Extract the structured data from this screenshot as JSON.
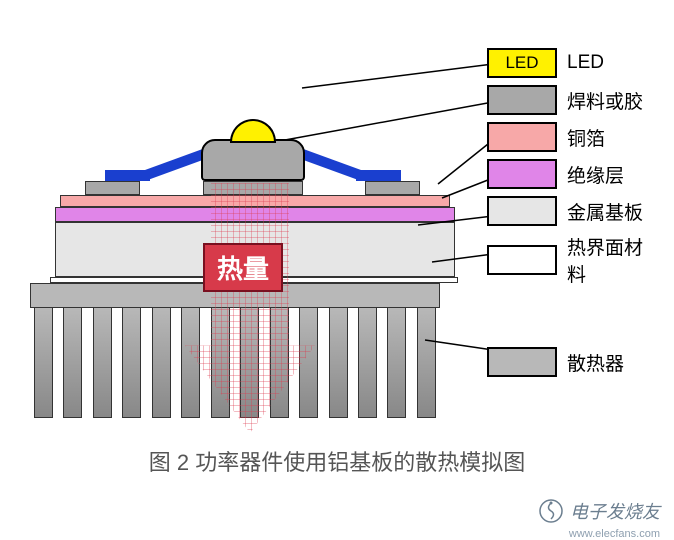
{
  "caption": "图 2   功率器件使用铝基板的散热模拟图",
  "heat_label": "热量",
  "watermark_text": "电子发烧友",
  "watermark_url": "www.elecfans.com",
  "legend": [
    {
      "label": "LED",
      "box_text": "LED",
      "color": "#fff100"
    },
    {
      "label": "焊料或胶",
      "box_text": "",
      "color": "#a8a8a8"
    },
    {
      "label": "铜箔",
      "box_text": "",
      "color": "#f7a8a8"
    },
    {
      "label": "绝缘层",
      "box_text": "",
      "color": "#e085e8"
    },
    {
      "label": "金属基板",
      "box_text": "",
      "color": "#e6e6e6"
    },
    {
      "label": "热界面材料",
      "box_text": "",
      "color": "#ffffff"
    },
    {
      "label": "散热器",
      "box_text": "",
      "color": "#b8b8b8"
    }
  ],
  "layers": {
    "led_dome": {
      "color": "#fff100"
    },
    "led_body": {
      "color": "#a8a8a8"
    },
    "leads": {
      "color": "#1a3fcf"
    },
    "solder": {
      "color": "#a8a8a8"
    },
    "copper": {
      "color": "#f7a8a8"
    },
    "insulation": {
      "color": "#e085e8"
    },
    "metal_substrate": {
      "color": "#e6e6e6"
    },
    "tim": {
      "color": "#ffffff"
    },
    "heatsink": {
      "color": "#b8b8b8",
      "fin_count": 14
    }
  },
  "heat_arrow": {
    "grid_color": "rgba(220,60,80,0.35)",
    "label_bg": "#d73a4a",
    "label_border": "#7a1020"
  },
  "legend_gaps": {
    "after_index_5": 60
  },
  "connectors": [
    {
      "from": [
        302,
        88
      ],
      "to": [
        493,
        64
      ]
    },
    {
      "from": [
        285,
        140
      ],
      "to": [
        493,
        102
      ]
    },
    {
      "from": [
        438,
        184
      ],
      "to": [
        493,
        140
      ]
    },
    {
      "from": [
        442,
        198
      ],
      "to": [
        493,
        178
      ]
    },
    {
      "from": [
        418,
        225
      ],
      "to": [
        493,
        216
      ]
    },
    {
      "from": [
        432,
        262
      ],
      "to": [
        493,
        254
      ]
    },
    {
      "from": [
        425,
        340
      ],
      "to": [
        493,
        350
      ]
    }
  ],
  "colors": {
    "border": "#333333",
    "text": "#000000",
    "caption": "#555555",
    "watermark": "#6b7e8f"
  }
}
